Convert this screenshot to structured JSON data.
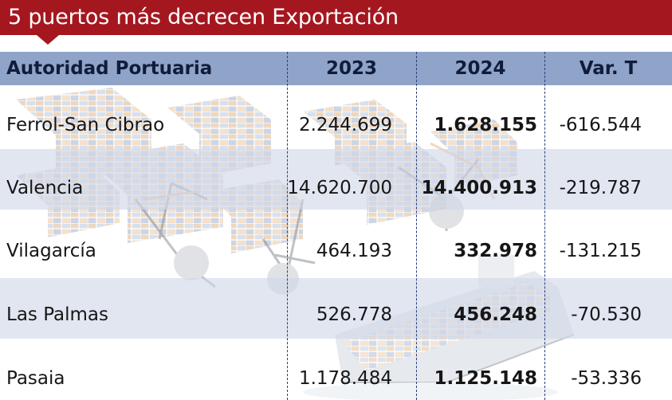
{
  "title": "5 puertos más decrecen Exportación",
  "table": {
    "headers": [
      "Autoridad Portuaria",
      "2023",
      "2024",
      "Var. T"
    ],
    "rows": [
      {
        "port": "Ferrol-San Cibrao",
        "y2023": "2.244.699",
        "y2024": "1.628.155",
        "var": "-616.544"
      },
      {
        "port": "Valencia",
        "y2023": "14.620.700",
        "y2024": "14.400.913",
        "var": "-219.787"
      },
      {
        "port": "Vilagarcía",
        "y2023": "464.193",
        "y2024": "332.978",
        "var": "-131.215"
      },
      {
        "port": "Las Palmas",
        "y2023": "526.778",
        "y2024": "456.248",
        "var": "-70.530"
      },
      {
        "port": "Pasaia",
        "y2023": "1.178.484",
        "y2024": "1.125.148",
        "var": "-53.336"
      }
    ]
  },
  "colors": {
    "title_bar": "#a5171f",
    "header_row": "#8fa4c8",
    "band": "#ced6e8",
    "divider": "#2a3f7a"
  },
  "icons": [
    "shipping-containers-illustration",
    "port-crane-illustration",
    "container-ship-illustration"
  ]
}
